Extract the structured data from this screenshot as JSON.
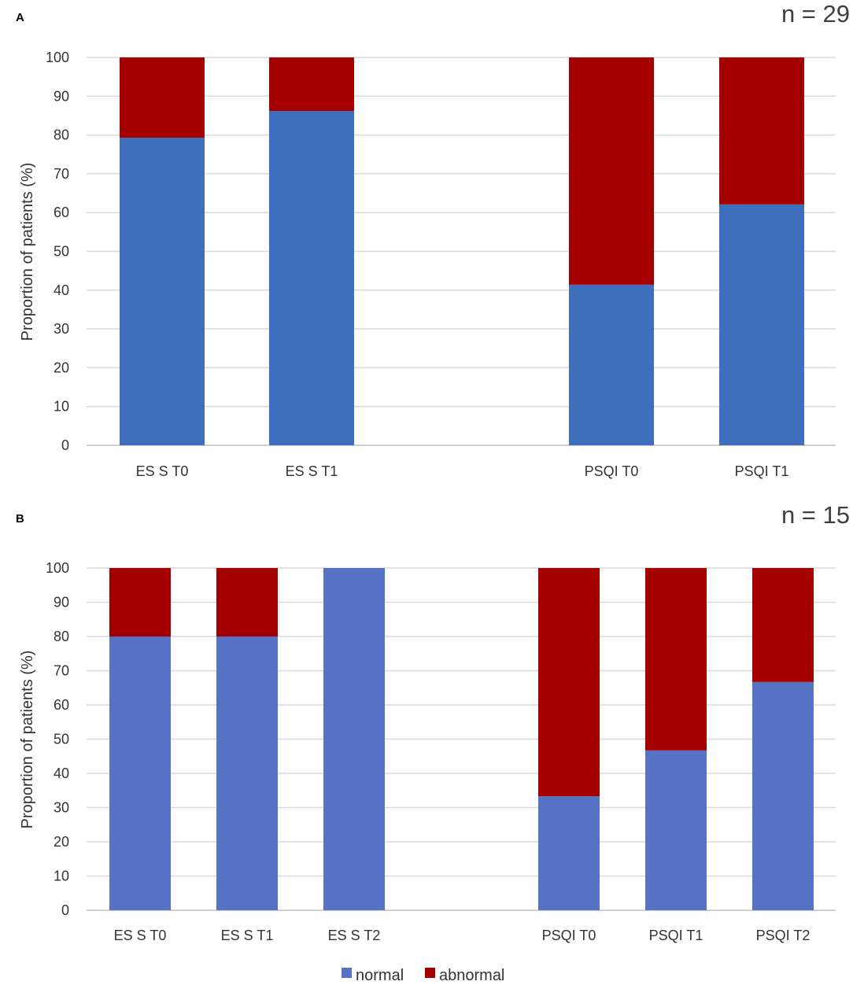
{
  "figure": {
    "legend": [
      {
        "label": "normal",
        "color": "#5572c4"
      },
      {
        "label": "abnormal",
        "color": "#a50000"
      }
    ]
  },
  "chart_data": [
    {
      "panel": "A",
      "type": "bar",
      "stacked": true,
      "annotation": "n = 29",
      "title": "",
      "xlabel": "",
      "ylabel": "Proportion  of  patients (%)",
      "ylim": [
        0,
        100
      ],
      "yticks": [
        0,
        10,
        20,
        30,
        40,
        50,
        60,
        70,
        80,
        90,
        100
      ],
      "grid": true,
      "normal_color": "#3d6fbd",
      "abnormal_color": "#a50000",
      "categories": [
        "ES S T0",
        "ES S T1",
        "PSQI T0",
        "PSQI T1"
      ],
      "series": [
        {
          "name": "normal",
          "values": [
            79.3,
            86.2,
            41.4,
            62.1
          ]
        },
        {
          "name": "abnormal",
          "values": [
            20.7,
            13.8,
            58.6,
            37.9
          ]
        }
      ]
    },
    {
      "panel": "B",
      "type": "bar",
      "stacked": true,
      "annotation": "n = 15",
      "title": "",
      "xlabel": "",
      "ylabel": "Proportion  of  patients (%)",
      "ylim": [
        0,
        100
      ],
      "yticks": [
        0,
        10,
        20,
        30,
        40,
        50,
        60,
        70,
        80,
        90,
        100
      ],
      "grid": true,
      "normal_color": "#5572c4",
      "abnormal_color": "#a50000",
      "categories": [
        "ES S T0",
        "ES S T1",
        "ES S T2",
        "PSQI T0",
        "PSQI T1",
        "PSQI T2"
      ],
      "series": [
        {
          "name": "normal",
          "values": [
            80,
            80,
            100,
            33.3,
            46.7,
            66.7
          ]
        },
        {
          "name": "abnormal",
          "values": [
            20,
            20,
            0,
            66.7,
            53.3,
            33.3
          ]
        }
      ]
    }
  ]
}
